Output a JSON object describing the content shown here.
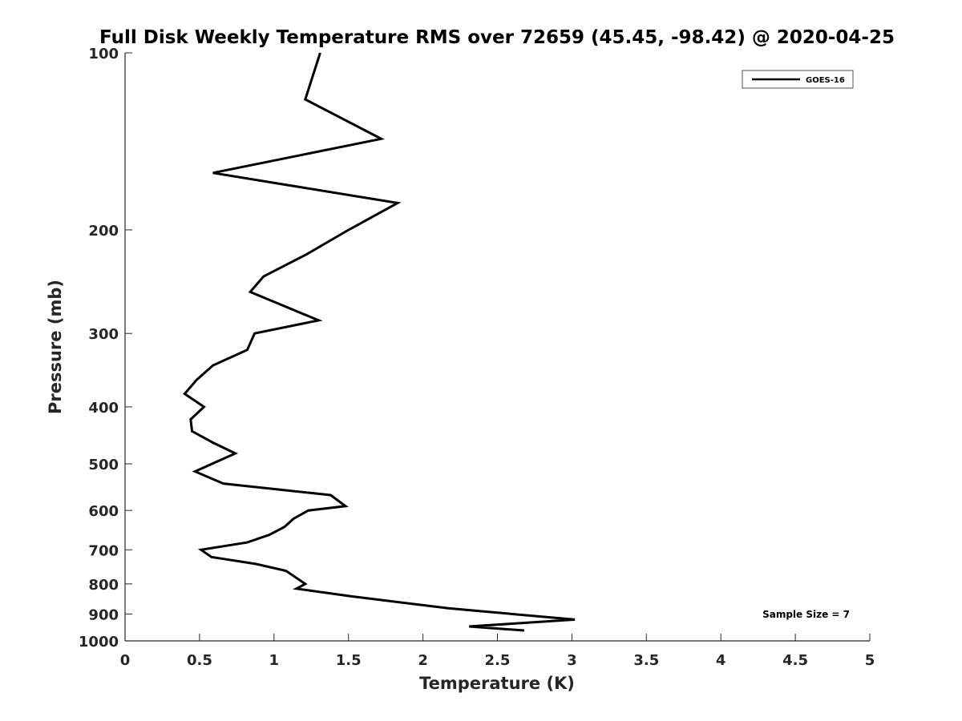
{
  "chart_data": {
    "type": "line",
    "title": "Full Disk Weekly Temperature RMS over 72659 (45.45, -98.42) @ 2020-04-25",
    "xlabel": "Temperature (K)",
    "ylabel": "Pressure (mb)",
    "xlim": [
      0,
      5
    ],
    "ylim": [
      1000,
      100
    ],
    "yscale": "log",
    "y_reversed": true,
    "xticks": [
      "0",
      "0.5",
      "1",
      "1.5",
      "2",
      "2.5",
      "3",
      "3.5",
      "4",
      "4.5",
      "5"
    ],
    "yticks": [
      "100",
      "200",
      "300",
      "400",
      "500",
      "600",
      "700",
      "800",
      "900",
      "1000"
    ],
    "grid": false,
    "legend_position": "top-right",
    "annotation": "Sample Size = 7",
    "series": [
      {
        "name": "GOES-16",
        "color": "#000000",
        "points": [
          {
            "x": 1.31,
            "p": 100
          },
          {
            "x": 1.21,
            "p": 120
          },
          {
            "x": 1.72,
            "p": 140
          },
          {
            "x": 0.59,
            "p": 160
          },
          {
            "x": 1.83,
            "p": 180
          },
          {
            "x": 1.5,
            "p": 200
          },
          {
            "x": 1.22,
            "p": 220
          },
          {
            "x": 0.93,
            "p": 240
          },
          {
            "x": 0.84,
            "p": 255
          },
          {
            "x": 1.3,
            "p": 285
          },
          {
            "x": 0.87,
            "p": 300
          },
          {
            "x": 0.82,
            "p": 320
          },
          {
            "x": 0.59,
            "p": 340
          },
          {
            "x": 0.48,
            "p": 360
          },
          {
            "x": 0.4,
            "p": 380
          },
          {
            "x": 0.53,
            "p": 400
          },
          {
            "x": 0.44,
            "p": 420
          },
          {
            "x": 0.45,
            "p": 440
          },
          {
            "x": 0.59,
            "p": 460
          },
          {
            "x": 0.74,
            "p": 480
          },
          {
            "x": 0.47,
            "p": 515
          },
          {
            "x": 0.66,
            "p": 540
          },
          {
            "x": 1.38,
            "p": 565
          },
          {
            "x": 1.48,
            "p": 590
          },
          {
            "x": 1.23,
            "p": 600
          },
          {
            "x": 1.13,
            "p": 620
          },
          {
            "x": 1.07,
            "p": 640
          },
          {
            "x": 0.97,
            "p": 660
          },
          {
            "x": 0.82,
            "p": 680
          },
          {
            "x": 0.51,
            "p": 700
          },
          {
            "x": 0.58,
            "p": 720
          },
          {
            "x": 0.88,
            "p": 740
          },
          {
            "x": 1.08,
            "p": 760
          },
          {
            "x": 1.21,
            "p": 800
          },
          {
            "x": 1.15,
            "p": 815
          },
          {
            "x": 1.52,
            "p": 840
          },
          {
            "x": 2.17,
            "p": 880
          },
          {
            "x": 3.02,
            "p": 920
          },
          {
            "x": 2.31,
            "p": 945
          },
          {
            "x": 2.68,
            "p": 960
          }
        ]
      }
    ]
  }
}
